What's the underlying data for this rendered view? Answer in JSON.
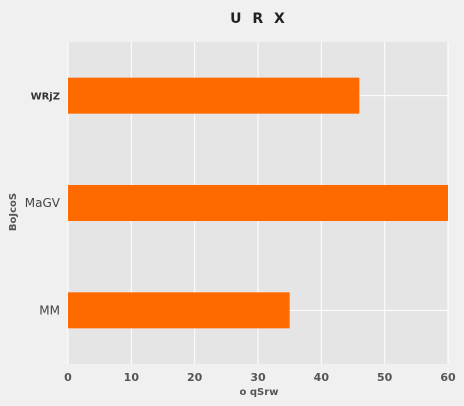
{
  "chart_data": {
    "type": "bar",
    "orientation": "horizontal",
    "title": "U R  X",
    "xlabel": "o  qSrw",
    "ylabel": "BoJcoS",
    "categories": [
      "WRjZ",
      "MaGV",
      "MM"
    ],
    "series": [
      {
        "values": [
          46,
          60,
          35
        ]
      }
    ],
    "xlim": [
      0,
      60
    ],
    "xticks": [
      "0",
      "10",
      "20",
      "30",
      "40",
      "50",
      "60"
    ],
    "grid": true,
    "colors": {
      "bar": "#ff6a00",
      "plot_bg": "#e5e5e5",
      "grid": "#ffffff"
    }
  }
}
